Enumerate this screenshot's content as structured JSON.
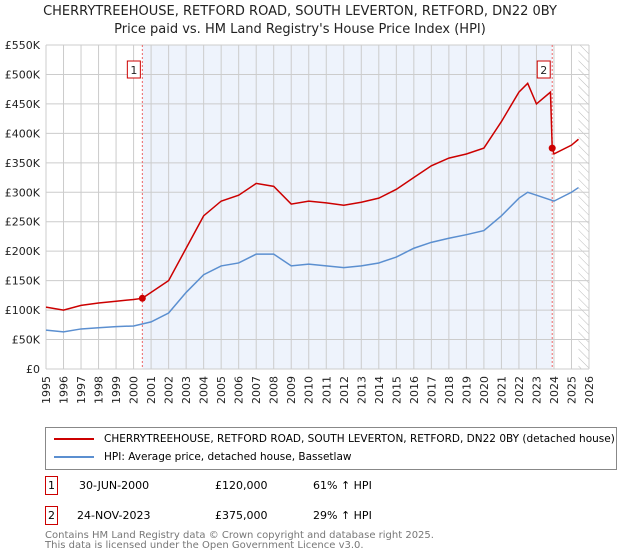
{
  "title": "CHERRYTREEHOUSE, RETFORD ROAD, SOUTH LEVERTON, RETFORD, DN22 0BY",
  "subtitle": "Price paid vs. HM Land Registry's House Price Index (HPI)",
  "chart_data": {
    "type": "line",
    "xlim": [
      1995,
      2026
    ],
    "ylim": [
      0,
      550000
    ],
    "yticks": [
      0,
      50000,
      100000,
      150000,
      200000,
      250000,
      300000,
      350000,
      400000,
      450000,
      500000,
      550000
    ],
    "ytick_labels": [
      "£0",
      "£50K",
      "£100K",
      "£150K",
      "£200K",
      "£250K",
      "£300K",
      "£350K",
      "£400K",
      "£450K",
      "£500K",
      "£550K"
    ],
    "xticks": [
      1995,
      1996,
      1997,
      1998,
      1999,
      2000,
      2001,
      2002,
      2003,
      2004,
      2005,
      2006,
      2007,
      2008,
      2009,
      2010,
      2011,
      2012,
      2013,
      2014,
      2015,
      2016,
      2017,
      2018,
      2019,
      2020,
      2021,
      2022,
      2023,
      2024,
      2025,
      2026
    ],
    "grid": true,
    "series": [
      {
        "name": "CHERRYTREEHOUSE, RETFORD ROAD, SOUTH LEVERTON, RETFORD, DN22 0BY (detached house)",
        "color": "#cc0000",
        "x": [
          1995,
          1996,
          1997,
          1998,
          1999,
          2000,
          2000.5,
          2001,
          2002,
          2003,
          2004,
          2005,
          2006,
          2007,
          2008,
          2009,
          2010,
          2011,
          2012,
          2013,
          2014,
          2015,
          2016,
          2017,
          2018,
          2019,
          2020,
          2021,
          2022,
          2022.5,
          2023,
          2023.8,
          2023.9,
          2024,
          2025,
          2025.4
        ],
        "y": [
          105000,
          100000,
          108000,
          112000,
          115000,
          118000,
          120000,
          130000,
          150000,
          205000,
          260000,
          285000,
          295000,
          315000,
          310000,
          280000,
          285000,
          282000,
          278000,
          283000,
          290000,
          305000,
          325000,
          345000,
          358000,
          365000,
          375000,
          420000,
          470000,
          485000,
          450000,
          470000,
          375000,
          365000,
          380000,
          390000
        ]
      },
      {
        "name": "HPI: Average price, detached house, Bassetlaw",
        "color": "#5b8fd0",
        "x": [
          1995,
          1996,
          1997,
          1998,
          1999,
          2000,
          2001,
          2002,
          2003,
          2004,
          2005,
          2006,
          2007,
          2008,
          2009,
          2010,
          2011,
          2012,
          2013,
          2014,
          2015,
          2016,
          2017,
          2018,
          2019,
          2020,
          2021,
          2022,
          2022.5,
          2023,
          2024,
          2025,
          2025.4
        ],
        "y": [
          66000,
          63000,
          68000,
          70000,
          72000,
          73000,
          80000,
          95000,
          130000,
          160000,
          175000,
          180000,
          195000,
          195000,
          175000,
          178000,
          175000,
          172000,
          175000,
          180000,
          190000,
          205000,
          215000,
          222000,
          228000,
          235000,
          260000,
          290000,
          300000,
          295000,
          285000,
          300000,
          308000
        ]
      }
    ],
    "annotations": [
      {
        "label": "1",
        "x": 2000.5,
        "y": 120000
      },
      {
        "label": "2",
        "x": 2023.9,
        "y": 375000
      }
    ],
    "shaded_range": [
      2000.5,
      2023.9
    ],
    "hatched_from": 2025.4
  },
  "legend": {
    "items": [
      "CHERRYTREEHOUSE, RETFORD ROAD, SOUTH LEVERTON, RETFORD, DN22 0BY (detached house)",
      "HPI: Average price, detached house, Bassetlaw"
    ]
  },
  "sales": [
    {
      "num": "1",
      "date": "30-JUN-2000",
      "price": "£120,000",
      "hpi": "61% ↑ HPI"
    },
    {
      "num": "2",
      "date": "24-NOV-2023",
      "price": "£375,000",
      "hpi": "29% ↑ HPI"
    }
  ],
  "footer": [
    "Contains HM Land Registry data © Crown copyright and database right 2025.",
    "This data is licensed under the Open Government Licence v3.0."
  ]
}
